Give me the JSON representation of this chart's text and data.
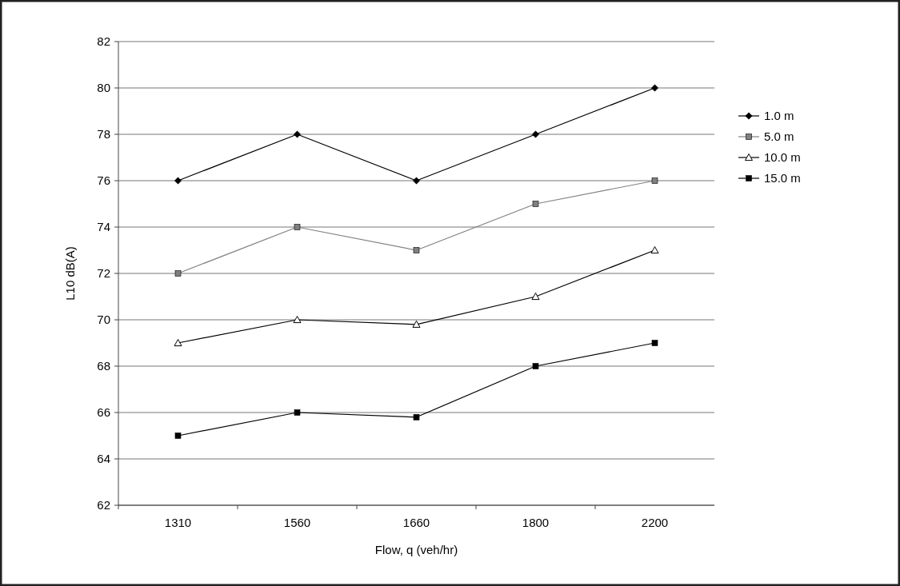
{
  "chart_data": {
    "type": "line",
    "xlabel": "Flow, q (veh/hr)",
    "ylabel": "L10 dB(A)",
    "categories": [
      "1310",
      "1560",
      "1660",
      "1800",
      "2200"
    ],
    "series": [
      {
        "name": "1.0 m",
        "color": "#000000",
        "marker": "diamond",
        "values": [
          76,
          78,
          76,
          78,
          80
        ]
      },
      {
        "name": "5.0 m",
        "color": "#808080",
        "marker": "square",
        "values": [
          72,
          74,
          73,
          75,
          76
        ]
      },
      {
        "name": "10.0 m",
        "color": "#000000",
        "marker": "triangle",
        "values": [
          69,
          70,
          69.8,
          71,
          73
        ]
      },
      {
        "name": "15.0 m",
        "color": "#000000",
        "marker": "square",
        "values": [
          65,
          66,
          65.8,
          68,
          69
        ]
      }
    ],
    "ylim": [
      62,
      82
    ],
    "yticks": [
      62,
      64,
      66,
      68,
      70,
      72,
      74,
      76,
      78,
      80,
      82
    ],
    "grid": "y",
    "legend": "right"
  }
}
